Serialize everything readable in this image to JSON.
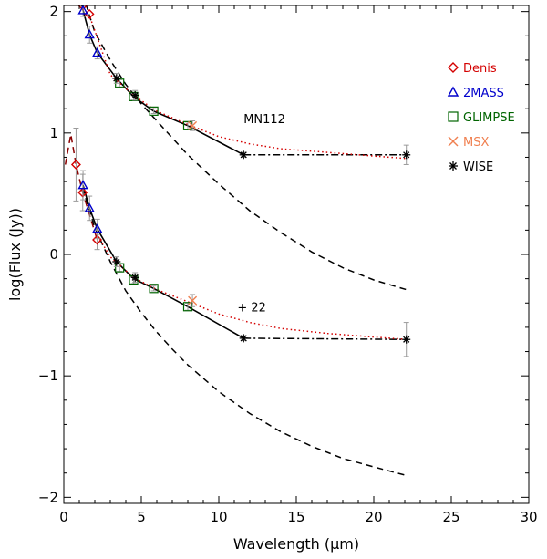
{
  "chart_data": {
    "type": "scatter",
    "xlabel": "Wavelength (µm)",
    "ylabel": "log(Flux (Jy))",
    "xlim": [
      0,
      30
    ],
    "ylim": [
      -2.05,
      2.05
    ],
    "x_ticks": [
      0,
      5,
      10,
      15,
      20,
      25,
      30
    ],
    "y_ticks": [
      -2,
      -1,
      0,
      1,
      2
    ],
    "grid": false,
    "legend_placement": "right",
    "annotations": [
      "MN112",
      "+ 22"
    ],
    "colors": {
      "Denis": "#d40000",
      "2MASS": "#0000cc",
      "GLIMPSE": "#006400",
      "MSX": "#f08050",
      "WISE": "#000000",
      "model": "#d40000"
    },
    "series": [
      {
        "name": "Denis",
        "marker": "diamond",
        "points": [
          {
            "x": 0.79,
            "y": 2.12,
            "err": 0.0
          },
          {
            "x": 1.22,
            "y": 2.05,
            "err": 0.0
          },
          {
            "x": 1.65,
            "y": 1.98,
            "err": 0.0
          },
          {
            "x": 0.79,
            "y": 0.74,
            "err": 0.3
          },
          {
            "x": 1.22,
            "y": 0.51,
            "err": 0.15
          },
          {
            "x": 2.15,
            "y": 0.12,
            "err": 0.08
          }
        ]
      },
      {
        "name": "2MASS",
        "marker": "triangle",
        "points": [
          {
            "x": 1.24,
            "y": 2.01,
            "err": 0.05
          },
          {
            "x": 1.66,
            "y": 1.81,
            "err": 0.07
          },
          {
            "x": 2.16,
            "y": 1.66,
            "err": 0.05
          },
          {
            "x": 1.24,
            "y": 0.57,
            "err": 0.12
          },
          {
            "x": 1.66,
            "y": 0.38,
            "err": 0.1
          },
          {
            "x": 2.16,
            "y": 0.21,
            "err": 0.08
          }
        ]
      },
      {
        "name": "GLIMPSE",
        "marker": "square",
        "points": [
          {
            "x": 3.6,
            "y": 1.41,
            "err": 0.03
          },
          {
            "x": 4.5,
            "y": 1.3,
            "err": 0.03
          },
          {
            "x": 5.8,
            "y": 1.18,
            "err": 0.02
          },
          {
            "x": 8.0,
            "y": 1.06,
            "err": 0.03
          },
          {
            "x": 3.6,
            "y": -0.11,
            "err": 0.03
          },
          {
            "x": 4.5,
            "y": -0.21,
            "err": 0.03
          },
          {
            "x": 5.8,
            "y": -0.28,
            "err": 0.02
          },
          {
            "x": 8.0,
            "y": -0.43,
            "err": 0.03
          }
        ]
      },
      {
        "name": "MSX",
        "marker": "x",
        "points": [
          {
            "x": 8.3,
            "y": 1.06,
            "err": 0.04
          },
          {
            "x": 8.3,
            "y": -0.38,
            "err": 0.05
          }
        ]
      },
      {
        "name": "WISE",
        "marker": "asterisk",
        "points": [
          {
            "x": 3.4,
            "y": 1.45,
            "err": 0.04
          },
          {
            "x": 4.6,
            "y": 1.31,
            "err": 0.04
          },
          {
            "x": 11.6,
            "y": 0.82,
            "err": 0.02
          },
          {
            "x": 22.1,
            "y": 0.82,
            "err": 0.08
          },
          {
            "x": 3.4,
            "y": -0.06,
            "err": 0.04
          },
          {
            "x": 4.6,
            "y": -0.19,
            "err": 0.04
          },
          {
            "x": 11.6,
            "y": -0.69,
            "err": 0.02
          },
          {
            "x": 22.1,
            "y": -0.7,
            "err": 0.14
          }
        ]
      }
    ],
    "lines": [
      {
        "style": "solid",
        "color": "#000000",
        "points": [
          [
            1.0,
            2.15
          ],
          [
            1.24,
            2.01
          ],
          [
            1.66,
            1.81
          ],
          [
            2.16,
            1.66
          ],
          [
            3.4,
            1.45
          ],
          [
            4.5,
            1.3
          ],
          [
            5.8,
            1.18
          ],
          [
            8.0,
            1.06
          ],
          [
            11.6,
            0.82
          ]
        ]
      },
      {
        "style": "dashdot",
        "color": "#000000",
        "points": [
          [
            11.6,
            0.82
          ],
          [
            22.1,
            0.82
          ]
        ]
      },
      {
        "style": "solid",
        "color": "#000000",
        "points": [
          [
            1.24,
            0.57
          ],
          [
            1.66,
            0.38
          ],
          [
            2.16,
            0.21
          ],
          [
            3.4,
            -0.06
          ],
          [
            4.5,
            -0.2
          ],
          [
            5.8,
            -0.28
          ],
          [
            8.0,
            -0.43
          ],
          [
            11.6,
            -0.69
          ]
        ]
      },
      {
        "style": "dashdot",
        "color": "#000000",
        "points": [
          [
            11.6,
            -0.69
          ],
          [
            22.1,
            -0.7
          ]
        ]
      },
      {
        "style": "dashed",
        "color": "#8b0000",
        "points": [
          [
            0.1,
            0.74
          ],
          [
            0.45,
            0.99
          ],
          [
            0.79,
            0.74
          ],
          [
            1.22,
            0.51
          ],
          [
            2.15,
            0.12
          ]
        ]
      },
      {
        "style": "dashed",
        "color": "#000000",
        "points": [
          [
            1.2,
            2.15
          ],
          [
            2,
            1.83
          ],
          [
            3,
            1.6
          ],
          [
            4,
            1.4
          ],
          [
            5,
            1.24
          ],
          [
            6,
            1.1
          ],
          [
            7,
            0.96
          ],
          [
            8,
            0.82
          ],
          [
            10,
            0.58
          ],
          [
            12,
            0.36
          ],
          [
            14,
            0.18
          ],
          [
            16,
            0.02
          ],
          [
            18,
            -0.11
          ],
          [
            20,
            -0.21
          ],
          [
            22.1,
            -0.29
          ]
        ]
      },
      {
        "style": "dashed",
        "color": "#000000",
        "points": [
          [
            1.2,
            0.55
          ],
          [
            2,
            0.22
          ],
          [
            3,
            -0.06
          ],
          [
            4,
            -0.3
          ],
          [
            5,
            -0.48
          ],
          [
            6,
            -0.64
          ],
          [
            7,
            -0.78
          ],
          [
            8,
            -0.91
          ],
          [
            10,
            -1.13
          ],
          [
            12,
            -1.31
          ],
          [
            14,
            -1.46
          ],
          [
            16,
            -1.58
          ],
          [
            18,
            -1.68
          ],
          [
            20,
            -1.75
          ],
          [
            22.1,
            -1.82
          ]
        ]
      },
      {
        "style": "dotted",
        "color": "#d40000",
        "points": [
          [
            1.7,
            1.95
          ],
          [
            3,
            1.48
          ],
          [
            4.5,
            1.31
          ],
          [
            6,
            1.18
          ],
          [
            8,
            1.07
          ],
          [
            10,
            0.97
          ],
          [
            12,
            0.91
          ],
          [
            14,
            0.87
          ],
          [
            17,
            0.84
          ],
          [
            20,
            0.81
          ],
          [
            22.1,
            0.79
          ]
        ]
      },
      {
        "style": "dotted",
        "color": "#d40000",
        "points": [
          [
            2.2,
            0.15
          ],
          [
            3,
            -0.02
          ],
          [
            4.5,
            -0.19
          ],
          [
            6,
            -0.29
          ],
          [
            8,
            -0.39
          ],
          [
            10,
            -0.49
          ],
          [
            12,
            -0.56
          ],
          [
            14,
            -0.61
          ],
          [
            17,
            -0.65
          ],
          [
            20,
            -0.68
          ],
          [
            22.1,
            -0.7
          ]
        ]
      }
    ]
  }
}
